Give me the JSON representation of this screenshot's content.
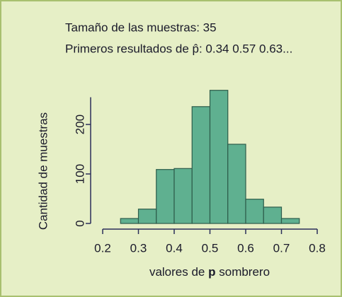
{
  "chart_data": {
    "type": "histogram",
    "title": "Tamaño de  las muestras: 35",
    "subtitle": "Primeros resultados de p̂: 0.34 0.57 0.63...",
    "ylabel": "Cantidad de muestras",
    "xlabel_parts": [
      "valores de ",
      "p",
      " sombrero"
    ],
    "bins": [
      0.25,
      0.3,
      0.35,
      0.4,
      0.45,
      0.5,
      0.55,
      0.6,
      0.65,
      0.7,
      0.75
    ],
    "values": [
      10,
      29,
      109,
      111,
      236,
      269,
      160,
      49,
      33,
      10
    ],
    "color": "#5fb090",
    "xlim": [
      0.2,
      0.8
    ],
    "xticks": [
      0.2,
      0.3,
      0.4,
      0.5,
      0.6,
      0.7,
      0.8
    ],
    "ylim": [
      0,
      255
    ],
    "yticks": [
      0,
      100,
      200
    ]
  }
}
